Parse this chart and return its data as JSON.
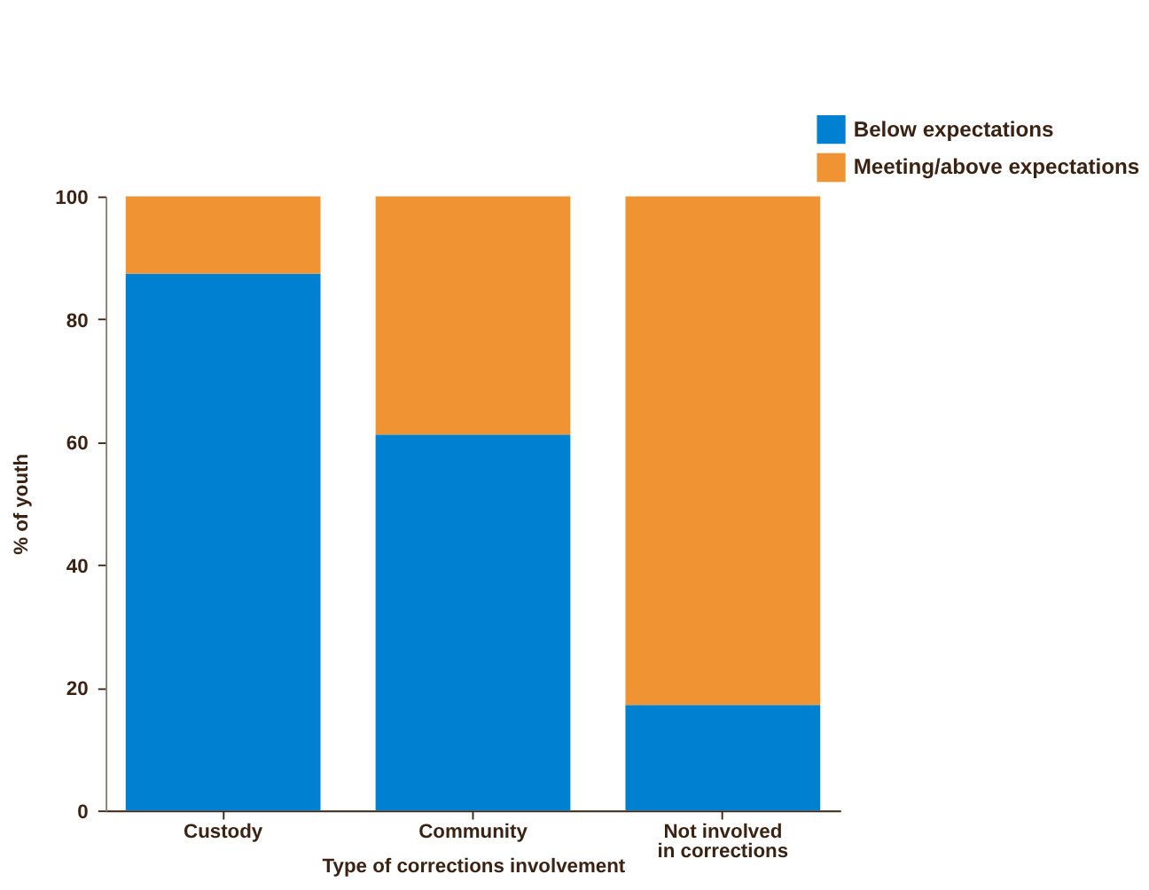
{
  "chart_data": {
    "type": "bar",
    "stacked": true,
    "xlabel": "Type of corrections involvement",
    "ylabel": "% of youth",
    "categories": [
      "Custody",
      "Community",
      "Not involved\nin corrections"
    ],
    "series": [
      {
        "name": "Below expectations",
        "color": "#0080d0",
        "values": [
          87.4,
          61.2,
          17.2
        ]
      },
      {
        "name": "Meeting/above expectations",
        "color": "#ef9333",
        "values": [
          12.6,
          38.8,
          82.8
        ]
      }
    ],
    "ylim": [
      0,
      100
    ],
    "yticks": [
      0,
      20,
      40,
      60,
      80,
      100
    ],
    "grid": false,
    "legend": "top right"
  }
}
